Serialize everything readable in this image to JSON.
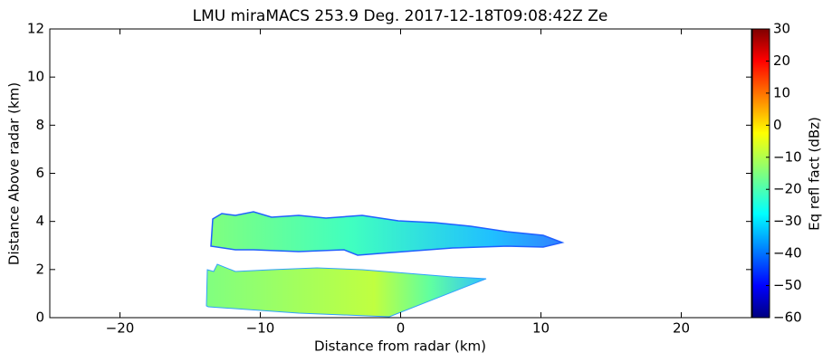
{
  "chart_data": {
    "type": "radar-rhi",
    "title": "LMU miraMACS 253.9 Deg. 2017-12-18T09:08:42Z  Ze",
    "x_label": "Distance from radar (km)",
    "y_label": "Distance Above radar  (km)",
    "colorbar_label": "Eq refl fact (dBz)",
    "colormap": "jet",
    "xlim": [
      -25,
      25
    ],
    "xticks": [
      {
        "value": -20,
        "label": "−20"
      },
      {
        "value": -10,
        "label": "−10"
      },
      0,
      10,
      20
    ],
    "ylim": [
      0,
      12
    ],
    "yticks": [
      0,
      2,
      4,
      6,
      8,
      10,
      12
    ],
    "clim": [
      -60,
      30
    ],
    "cticks": [
      {
        "value": -60,
        "label": "−60"
      },
      {
        "value": -50,
        "label": "−50"
      },
      {
        "value": -40,
        "label": "−40"
      },
      {
        "value": -30,
        "label": "−30"
      },
      {
        "value": -20,
        "label": "−20"
      },
      {
        "value": -10,
        "label": "−10"
      },
      0,
      10,
      20,
      30
    ]
  }
}
